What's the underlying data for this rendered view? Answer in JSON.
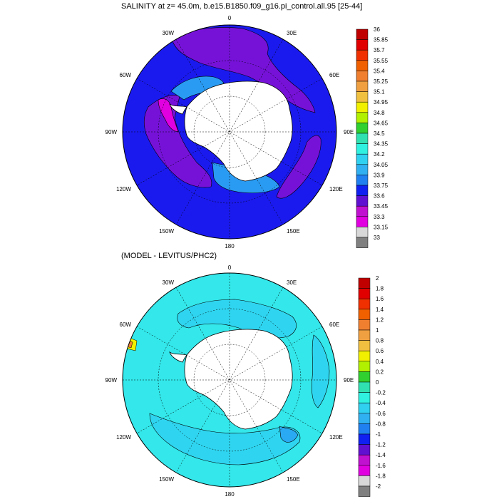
{
  "panels": [
    {
      "title": "SALINITY at z=  45.0m, b.e15.B1850.f09_g16.pi_control.all.95 [25-44]",
      "colorbar_labels": [
        "36",
        "35.85",
        "35.7",
        "35.55",
        "35.4",
        "35.25",
        "35.1",
        "34.95",
        "34.8",
        "34.65",
        "34.5",
        "34.35",
        "34.2",
        "34.05",
        "33.9",
        "33.75",
        "33.6",
        "33.45",
        "33.3",
        "33.15",
        "33"
      ]
    },
    {
      "title": "(MODEL - LEVITUS/PHC2)",
      "colorbar_labels": [
        "2",
        "1.8",
        "1.6",
        "1.4",
        "1.2",
        "1",
        "0.8",
        "0.6",
        "0.4",
        "0.2",
        "0",
        "-0.2",
        "-0.4",
        "-0.6",
        "-0.8",
        "-1",
        "-1.2",
        "-1.4",
        "-1.6",
        "-1.8",
        "-2"
      ]
    }
  ],
  "longitude_labels": [
    "0",
    "30E",
    "60E",
    "90E",
    "120E",
    "150E",
    "180",
    "150W",
    "120W",
    "90W",
    "60W",
    "30W"
  ],
  "colorbar_colors": [
    "#c00000",
    "#e00000",
    "#f03000",
    "#f06000",
    "#f08030",
    "#f0a040",
    "#f0c040",
    "#f0f000",
    "#b0f000",
    "#30d030",
    "#30e0b0",
    "#30f0e0",
    "#30d0f0",
    "#30b0f0",
    "#2080f0",
    "#1020f0",
    "#6010d0",
    "#c010d0",
    "#e000e0",
    "#d8d8d8",
    "#808080"
  ],
  "map_colors": {
    "land": "#ffffff",
    "panel1_background": "#1a1aee",
    "panel2_background": "#33e7ea"
  }
}
